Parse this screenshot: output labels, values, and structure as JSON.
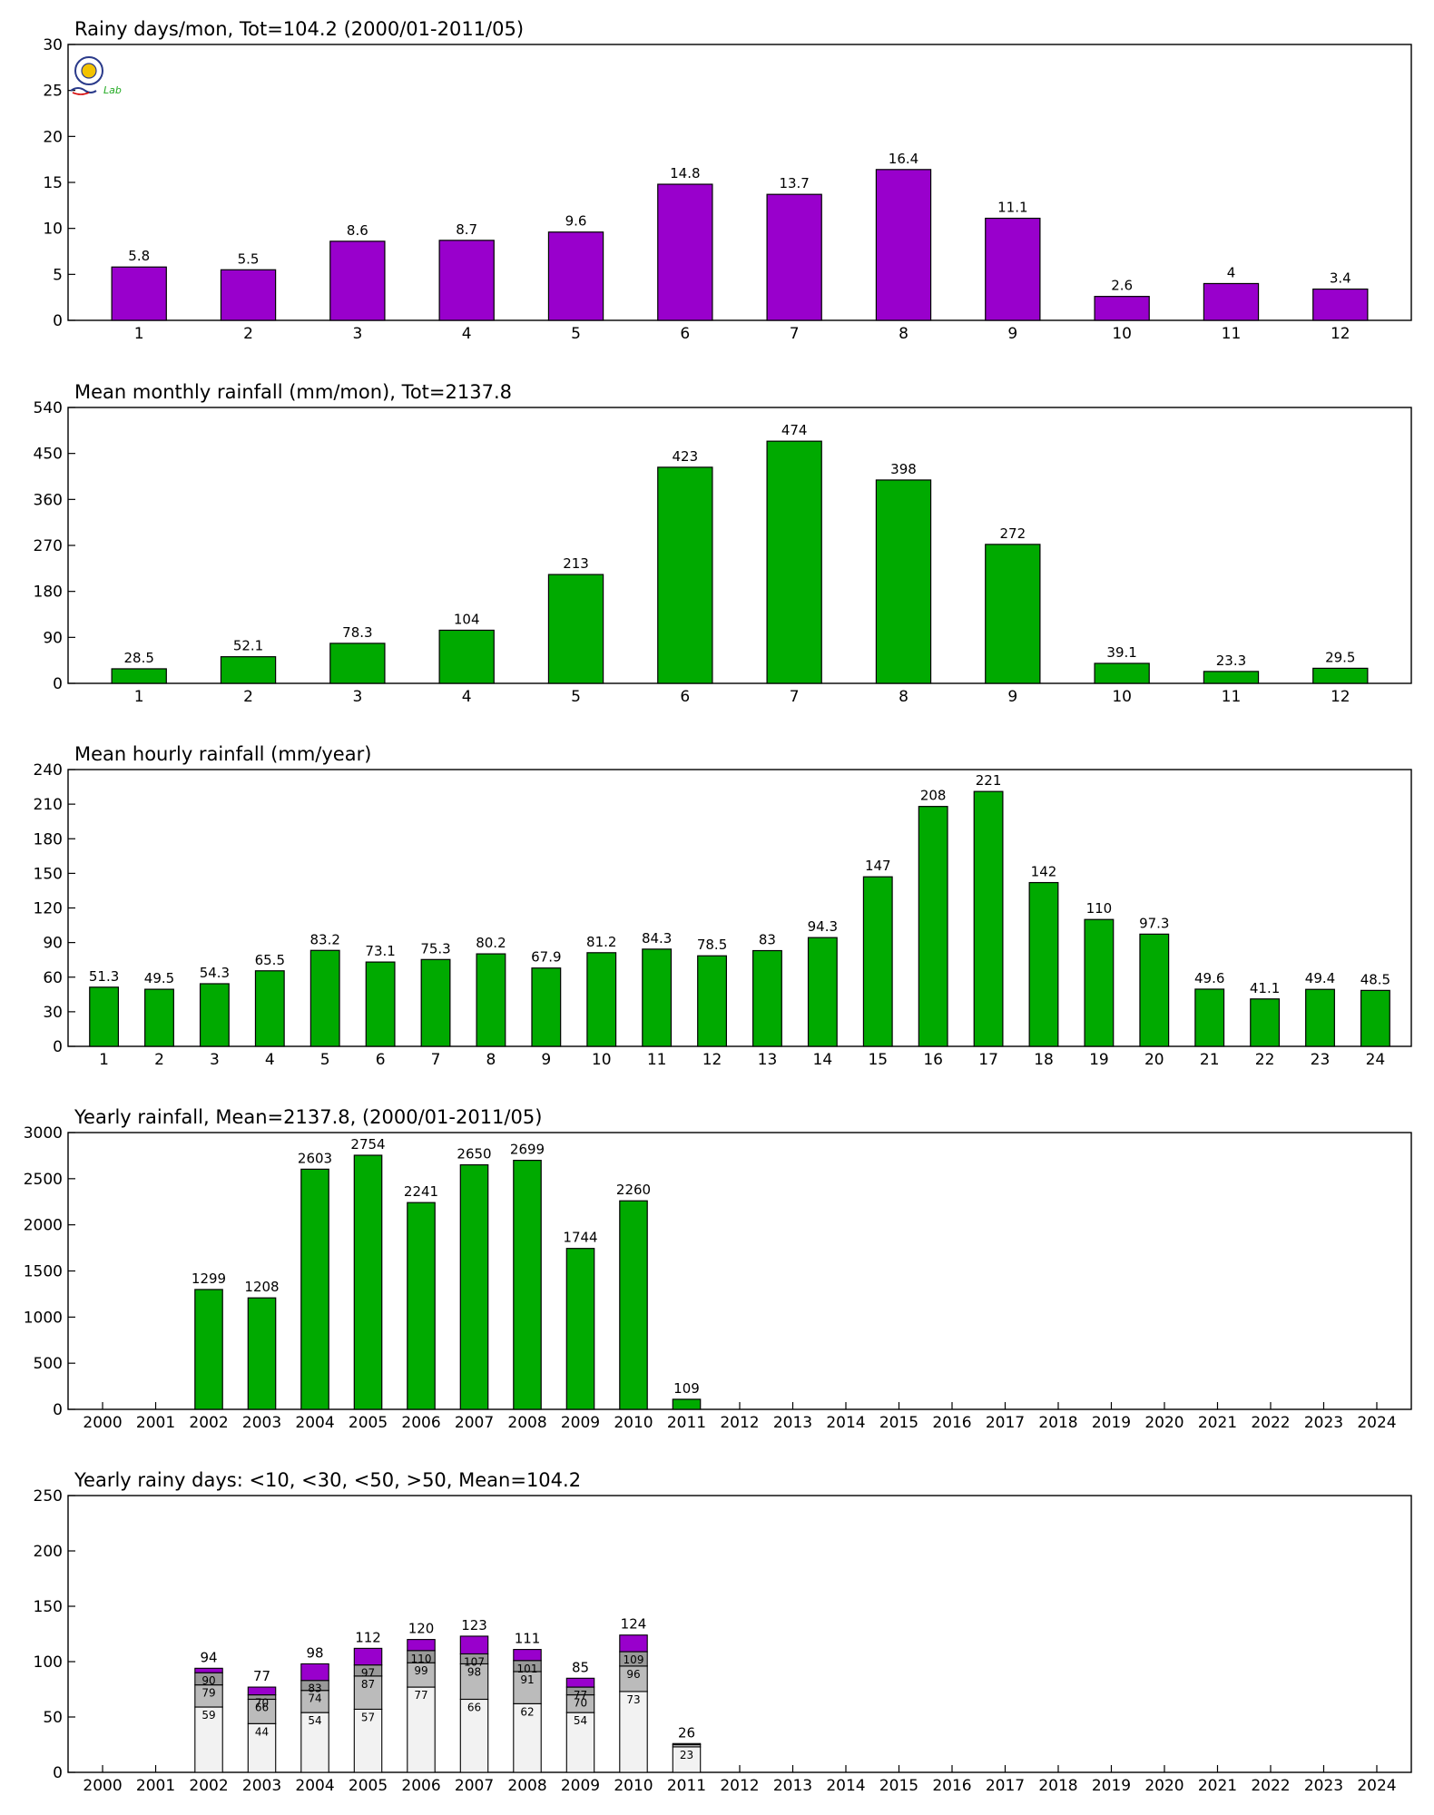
{
  "logo_text": "Lab",
  "chart_data": [
    {
      "type": "bar",
      "title": "Rainy days/mon, Tot=104.2 (2000/01-2011/05)",
      "categories": [
        "1",
        "2",
        "3",
        "4",
        "5",
        "6",
        "7",
        "8",
        "9",
        "10",
        "11",
        "12"
      ],
      "values": [
        5.8,
        5.5,
        8.6,
        8.7,
        9.6,
        14.8,
        13.7,
        16.4,
        11.1,
        2.6,
        4,
        3.4
      ],
      "labels": [
        "5.8",
        "5.5",
        "8.6",
        "8.7",
        "9.6",
        "14.8",
        "13.7",
        "16.4",
        "11.1",
        "2.6",
        "4",
        "3.4"
      ],
      "ylim": [
        0,
        30
      ],
      "yticks": [
        0,
        5,
        10,
        15,
        20,
        25,
        30
      ],
      "color": "#9900cc",
      "grid": false
    },
    {
      "type": "bar",
      "title": "Mean monthly rainfall (mm/mon), Tot=2137.8",
      "categories": [
        "1",
        "2",
        "3",
        "4",
        "5",
        "6",
        "7",
        "8",
        "9",
        "10",
        "11",
        "12"
      ],
      "values": [
        28.5,
        52.1,
        78.3,
        104,
        213,
        423,
        474,
        398,
        272,
        39.1,
        23.3,
        29.5
      ],
      "labels": [
        "28.5",
        "52.1",
        "78.3",
        "104",
        "213",
        "423",
        "474",
        "398",
        "272",
        "39.1",
        "23.3",
        "29.5"
      ],
      "ylim": [
        0,
        540
      ],
      "yticks": [
        0,
        90,
        180,
        270,
        360,
        450,
        540
      ],
      "color": "#00aa00",
      "grid": false
    },
    {
      "type": "bar",
      "title": "Mean hourly rainfall (mm/year)",
      "categories": [
        "1",
        "2",
        "3",
        "4",
        "5",
        "6",
        "7",
        "8",
        "9",
        "10",
        "11",
        "12",
        "13",
        "14",
        "15",
        "16",
        "17",
        "18",
        "19",
        "20",
        "21",
        "22",
        "23",
        "24"
      ],
      "values": [
        51.3,
        49.5,
        54.3,
        65.5,
        83.2,
        73.1,
        75.3,
        80.2,
        67.9,
        81.2,
        84.3,
        78.5,
        83,
        94.3,
        147,
        208,
        221,
        142,
        110,
        97.3,
        49.6,
        41.1,
        49.4,
        48.5
      ],
      "labels": [
        "51.3",
        "49.5",
        "54.3",
        "65.5",
        "83.2",
        "73.1",
        "75.3",
        "80.2",
        "67.9",
        "81.2",
        "84.3",
        "78.5",
        "83",
        "94.3",
        "147",
        "208",
        "221",
        "142",
        "110",
        "97.3",
        "49.6",
        "41.1",
        "49.4",
        "48.5"
      ],
      "ylim": [
        0,
        240
      ],
      "yticks": [
        0,
        30,
        60,
        90,
        120,
        150,
        180,
        210,
        240
      ],
      "color": "#00aa00",
      "grid": false
    },
    {
      "type": "bar",
      "title": "Yearly rainfall, Mean=2137.8, (2000/01-2011/05)",
      "categories": [
        "2000",
        "2001",
        "2002",
        "2003",
        "2004",
        "2005",
        "2006",
        "2007",
        "2008",
        "2009",
        "2010",
        "2011",
        "2012",
        "2013",
        "2014",
        "2015",
        "2016",
        "2017",
        "2018",
        "2019",
        "2020",
        "2021",
        "2022",
        "2023",
        "2024"
      ],
      "values": [
        null,
        null,
        1299,
        1208,
        2603,
        2754,
        2241,
        2650,
        2699,
        1744,
        2260,
        109,
        null,
        null,
        null,
        null,
        null,
        null,
        null,
        null,
        null,
        null,
        null,
        null,
        null
      ],
      "labels": [
        "",
        "",
        "1299",
        "1208",
        "2603",
        "2754",
        "2241",
        "2650",
        "2699",
        "1744",
        "2260",
        "109",
        "",
        "",
        "",
        "",
        "",
        "",
        "",
        "",
        "",
        "",
        "",
        "",
        ""
      ],
      "ylim": [
        0,
        3000
      ],
      "yticks": [
        0,
        500,
        1000,
        1500,
        2000,
        2500,
        3000
      ],
      "color": "#00aa00",
      "grid": false
    },
    {
      "type": "stacked-bar",
      "title": "Yearly rainy days: <10, <30, <50, >50, Mean=104.2",
      "categories": [
        "2000",
        "2001",
        "2002",
        "2003",
        "2004",
        "2005",
        "2006",
        "2007",
        "2008",
        "2009",
        "2010",
        "2011",
        "2012",
        "2013",
        "2014",
        "2015",
        "2016",
        "2017",
        "2018",
        "2019",
        "2020",
        "2021",
        "2022",
        "2023",
        "2024"
      ],
      "cumulative": [
        null,
        null,
        [
          59,
          79,
          90,
          94
        ],
        [
          44,
          66,
          70,
          77
        ],
        [
          54,
          74,
          83,
          98
        ],
        [
          57,
          87,
          97,
          112
        ],
        [
          77,
          99,
          110,
          120
        ],
        [
          66,
          98,
          107,
          123
        ],
        [
          62,
          91,
          101,
          111
        ],
        [
          54,
          70,
          77,
          85
        ],
        [
          73,
          96,
          109,
          124
        ],
        [
          23,
          25,
          26,
          26
        ],
        null,
        null,
        null,
        null,
        null,
        null,
        null,
        null,
        null,
        null,
        null,
        null,
        null
      ],
      "segment_labels": [
        null,
        null,
        [
          "59",
          "79",
          "90"
        ],
        [
          "44",
          "66",
          "70"
        ],
        [
          "54",
          "74",
          "83"
        ],
        [
          "57",
          "87",
          "97"
        ],
        [
          "77",
          "99",
          "110"
        ],
        [
          "66",
          "98",
          "107"
        ],
        [
          "62",
          "91",
          "101"
        ],
        [
          "54",
          "70",
          "77"
        ],
        [
          "73",
          "96",
          "109"
        ],
        [
          "23",
          "",
          ""
        ],
        null,
        null,
        null,
        null,
        null,
        null,
        null,
        null,
        null,
        null,
        null,
        null,
        null
      ],
      "total_labels": [
        "",
        "",
        "94",
        "77",
        "98",
        "112",
        "120",
        "123",
        "111",
        "85",
        "124",
        "26",
        "",
        "",
        "",
        "",
        "",
        "",
        "",
        "",
        "",
        "",
        "",
        "",
        ""
      ],
      "ylim": [
        0,
        250
      ],
      "yticks": [
        0,
        50,
        100,
        150,
        200,
        250
      ],
      "colors": [
        "#f2f2f2",
        "#bbbbbb",
        "#999999",
        "#9900cc"
      ],
      "grid": false
    }
  ]
}
